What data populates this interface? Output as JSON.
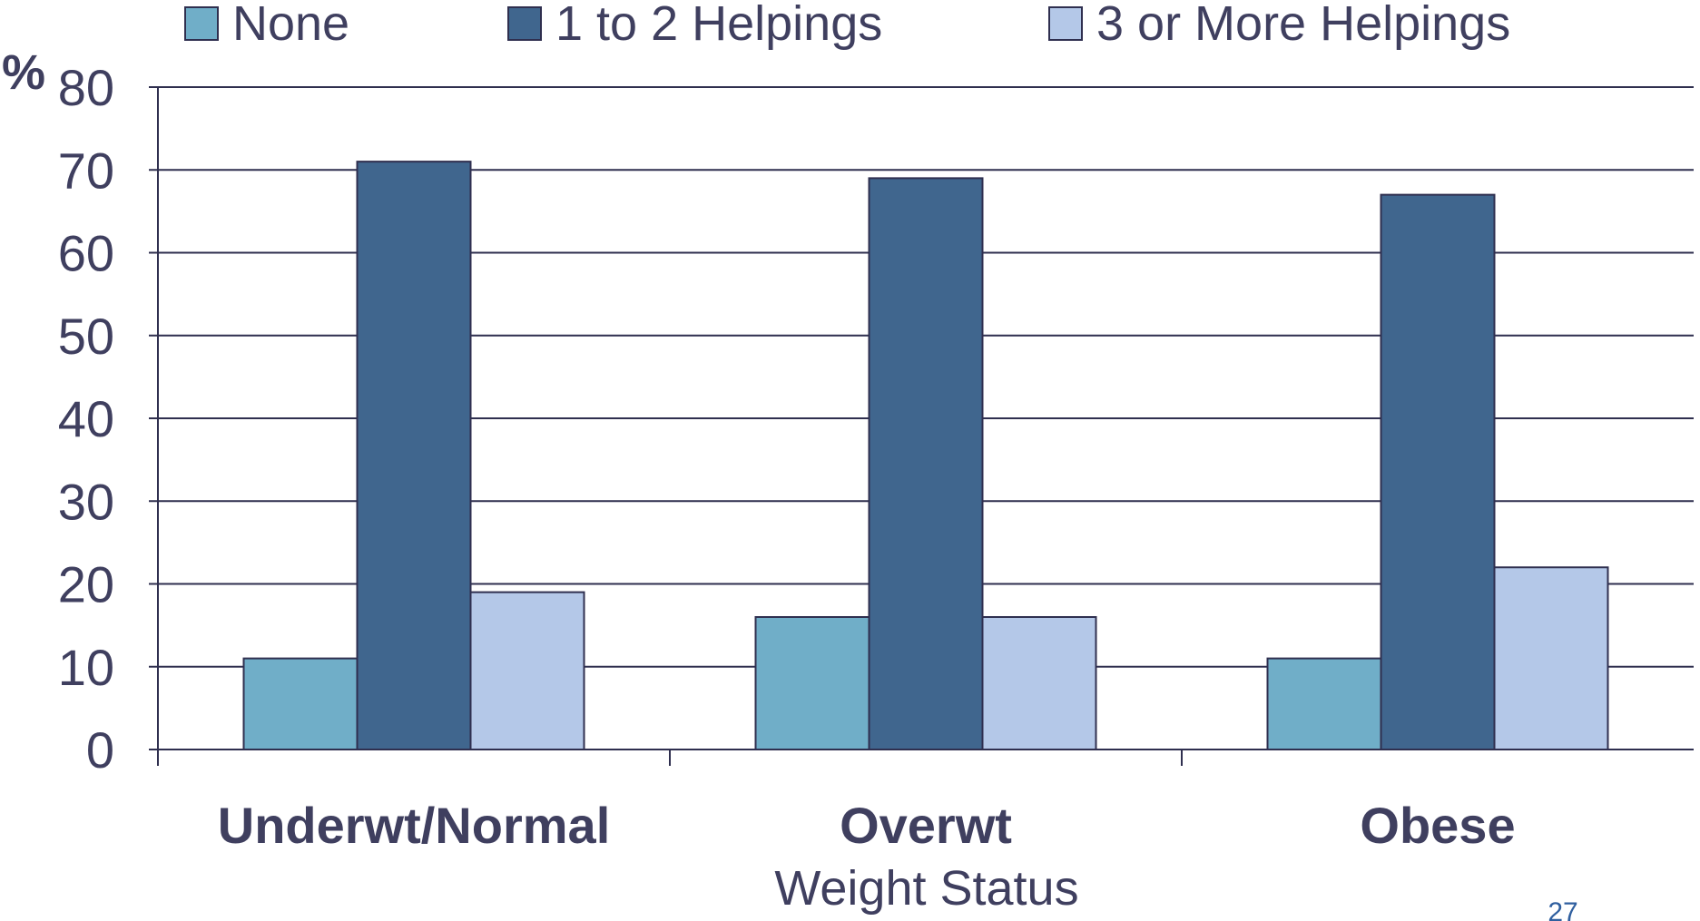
{
  "colors": {
    "background": "#ffffff",
    "grid": "#2f2f4f",
    "text": "#3f3f5f",
    "page_number": "#2f5f9f"
  },
  "page_number": "27",
  "chart_data": {
    "type": "bar",
    "title": "",
    "xlabel": "Weight Status",
    "ylabel": "%",
    "categories": [
      "Underwt/Normal",
      "Overwt",
      "Obese"
    ],
    "ylim": [
      0,
      80
    ],
    "yticks": [
      0,
      10,
      20,
      30,
      40,
      50,
      60,
      70,
      80
    ],
    "grid": true,
    "legend_position": "top",
    "series": [
      {
        "name": "None",
        "values": [
          11,
          16,
          11
        ],
        "color": "#70aec8"
      },
      {
        "name": "1 to 2 Helpings",
        "values": [
          71,
          69,
          67
        ],
        "color": "#40668e"
      },
      {
        "name": "3 or More Helpings",
        "values": [
          19,
          16,
          22
        ],
        "color": "#b4c8e8"
      }
    ]
  }
}
